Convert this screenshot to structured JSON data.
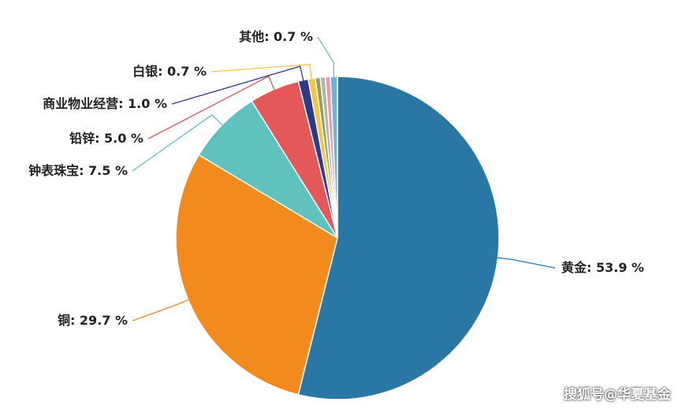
{
  "chart_data": {
    "type": "pie",
    "categories": [
      "黄金",
      "铜",
      "钟表珠宝",
      "铅锌",
      "商业物业经营",
      "白银",
      null,
      null,
      null,
      "其他"
    ],
    "values": [
      53.9,
      29.7,
      7.5,
      5.0,
      1.0,
      0.7,
      0.5,
      0.5,
      0.5,
      0.7
    ],
    "value_labels": [
      "53.9 %",
      "29.7 %",
      "7.5 %",
      "5.0 %",
      "1.0 %",
      "0.7 %",
      null,
      null,
      null,
      "0.7 %"
    ],
    "colors": [
      "#2a77a6",
      "#f28a1e",
      "#5fc2bc",
      "#e4585a",
      "#2f3a87",
      "#f3c64a",
      "#9c9c52",
      "#b4b4b4",
      "#e99ca2",
      "#6fb4da"
    ]
  },
  "watermark": "搜狐号@华夏基金"
}
